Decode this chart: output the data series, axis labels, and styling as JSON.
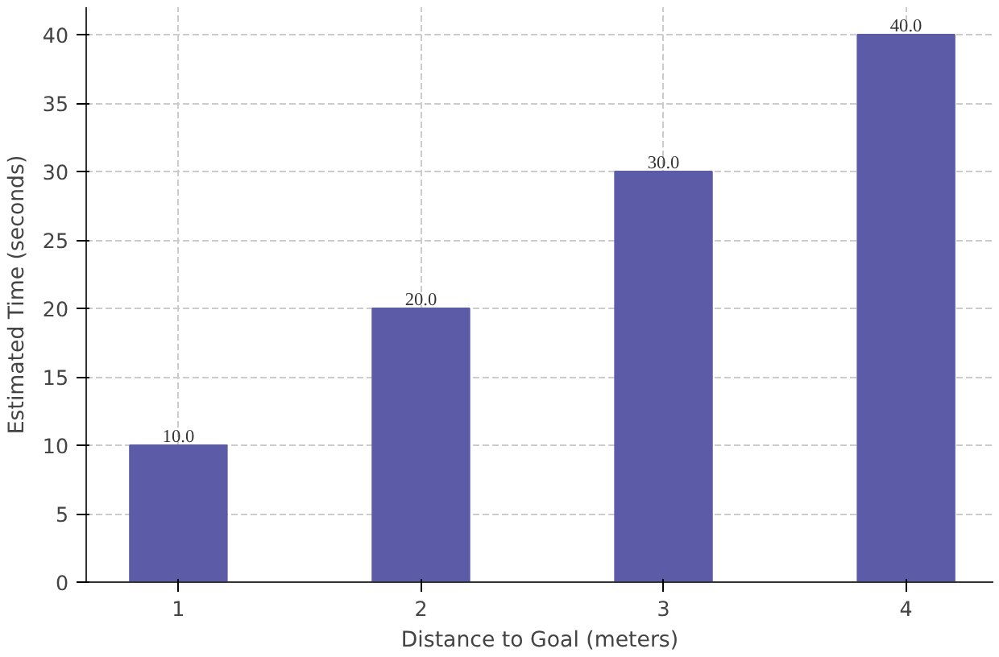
{
  "chart_data": {
    "type": "bar",
    "xlabel": "Distance to Goal (meters)",
    "ylabel": "Estimated Time (seconds)",
    "x": [
      1,
      2,
      3,
      4
    ],
    "values": [
      10,
      20,
      30,
      40
    ],
    "value_labels": [
      "10.0",
      "20.0",
      "30.0",
      "40.0"
    ],
    "color": "#5b5ba8",
    "xlim": [
      0.62,
      4.36
    ],
    "xticks": [
      1,
      2,
      3,
      4
    ],
    "ylim": [
      0,
      42
    ],
    "yticks": [
      0,
      5,
      10,
      15,
      20,
      25,
      30,
      35,
      40
    ],
    "grid": true
  }
}
